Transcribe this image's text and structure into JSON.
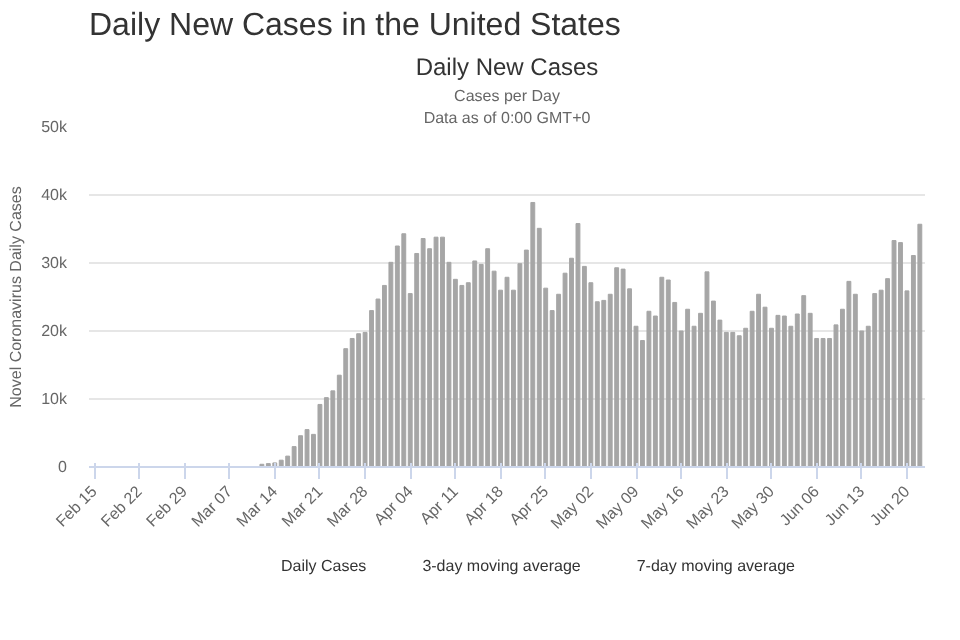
{
  "chart_data": {
    "type": "bar",
    "title": "Daily New Cases in the United States",
    "subtitle": "Daily New Cases",
    "annotations": [
      "Cases per Day",
      "Data as of 0:00 GMT+0",
      "3-day moving average",
      "7-day moving average"
    ],
    "ylabel": "Novel Coronavirus Daily Cases",
    "categories": [
      "Feb 15",
      null,
      null,
      null,
      null,
      null,
      null,
      "Feb 22",
      null,
      null,
      null,
      null,
      null,
      null,
      "Feb 29",
      null,
      null,
      null,
      null,
      null,
      null,
      "Mar 07",
      null,
      null,
      null,
      null,
      null,
      null,
      "Mar 14",
      null,
      null,
      null,
      null,
      null,
      null,
      "Mar 21",
      null,
      null,
      null,
      null,
      null,
      null,
      "Mar 28",
      null,
      null,
      null,
      null,
      null,
      null,
      "Apr 04",
      null,
      null,
      null,
      null,
      null,
      null,
      "Apr 11",
      null,
      null,
      null,
      null,
      null,
      null,
      "Apr 18",
      null,
      null,
      null,
      null,
      null,
      null,
      "Apr 25",
      null,
      null,
      null,
      null,
      null,
      null,
      "May 02",
      null,
      null,
      null,
      null,
      null,
      null,
      "May 09",
      null,
      null,
      null,
      null,
      null,
      null,
      "May 16",
      null,
      null,
      null,
      null,
      null,
      null,
      "May 23",
      null,
      null,
      null,
      null,
      null,
      null,
      "May 30",
      null,
      null,
      null,
      null,
      null,
      null,
      "Jun 06",
      null,
      null,
      null,
      null,
      null,
      null,
      "Jun 13",
      null,
      null,
      null,
      null,
      null,
      null,
      "Jun 20",
      null,
      null
    ],
    "series": [
      {
        "name": "Daily Cases",
        "color": "#a6a6a6",
        "values": [
          0,
          0,
          0,
          0,
          0,
          0,
          0,
          0,
          0,
          0,
          0,
          0,
          0,
          0,
          0,
          0,
          0,
          0,
          0,
          0,
          0,
          0,
          0,
          0,
          0,
          0,
          400,
          500,
          600,
          1000,
          1600,
          3000,
          4600,
          5500,
          4800,
          9200,
          10200,
          11200,
          13500,
          17400,
          18900,
          19600,
          19800,
          23000,
          24700,
          26700,
          30100,
          32500,
          34300,
          25500,
          31400,
          33600,
          32100,
          33800,
          33800,
          30100,
          27600,
          26700,
          27100,
          30300,
          29800,
          32100,
          28800,
          26000,
          27900,
          26000,
          29900,
          31900,
          38900,
          35100,
          26300,
          23000,
          25400,
          28500,
          30700,
          35800,
          29500,
          27100,
          24300,
          24500,
          25400,
          29300,
          29100,
          26200,
          20700,
          18600,
          22900,
          22200,
          27900,
          27500,
          24200,
          20000,
          23200,
          20700,
          22600,
          28700,
          24400,
          21600,
          19800,
          19800,
          19300,
          20400,
          22900,
          25400,
          23500,
          20400,
          22300,
          22200,
          20700,
          22500,
          25200,
          22600,
          18900,
          18900,
          18900,
          20900,
          23200,
          27300,
          25400,
          20000,
          20700,
          25500,
          26000,
          27700,
          33300,
          33000,
          25900,
          31100,
          35700
        ]
      }
    ],
    "ylim": [
      0,
      50000
    ],
    "yticks": [
      0,
      {
        "value": 10000,
        "label": "10k"
      },
      {
        "value": 20000,
        "label": "20k"
      },
      {
        "value": 30000,
        "label": "30k"
      },
      {
        "value": 40000,
        "label": "40k"
      },
      {
        "value": 50000,
        "label": "50k"
      }
    ],
    "grid": "y",
    "legend": "bottom"
  }
}
